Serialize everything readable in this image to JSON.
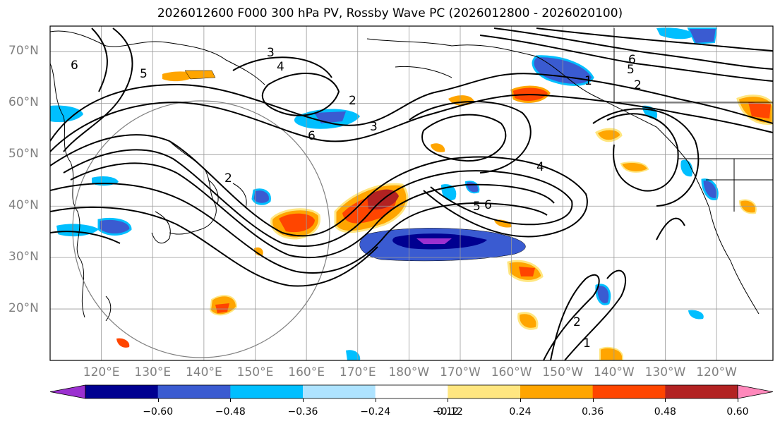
{
  "title": "2026012600 F000 300 hPa PV, Rossby Wave PC (2026012800 - 2026020100)",
  "map": {
    "lat_labels": [
      {
        "label": "70°N",
        "lat": 70
      },
      {
        "label": "60°N",
        "lat": 60
      },
      {
        "label": "50°N",
        "lat": 50
      },
      {
        "label": "40°N",
        "lat": 40
      },
      {
        "label": "30°N",
        "lat": 30
      },
      {
        "label": "20°N",
        "lat": 20
      }
    ],
    "lon_labels": [
      {
        "label": "120°E",
        "lon": 120
      },
      {
        "label": "130°E",
        "lon": 130
      },
      {
        "label": "140°E",
        "lon": 140
      },
      {
        "label": "150°E",
        "lon": 150
      },
      {
        "label": "160°E",
        "lon": 160
      },
      {
        "label": "170°E",
        "lon": 170
      },
      {
        "label": "180°W",
        "lon": 180
      },
      {
        "label": "170°W",
        "lon": 190
      },
      {
        "label": "160°W",
        "lon": 200
      },
      {
        "label": "150°W",
        "lon": 210
      },
      {
        "label": "140°W",
        "lon": 220
      },
      {
        "label": "130°W",
        "lon": 230
      },
      {
        "label": "120°W",
        "lon": 240
      }
    ],
    "extent": {
      "lon_min": 110,
      "lon_max": 251,
      "lat_min": 10,
      "lat_max": 75
    },
    "contour_labels": [
      "3",
      "4",
      "6",
      "5",
      "2",
      "3",
      "6",
      "2",
      "5",
      "6",
      "4",
      "1",
      "6",
      "5",
      "2",
      "1",
      "2"
    ]
  },
  "colorbar": {
    "ticks": [
      "−0.60",
      "−0.48",
      "−0.36",
      "−0.24",
      "−0.12",
      "0.12",
      "0.24",
      "0.36",
      "0.48",
      "0.60"
    ],
    "colors": [
      "#9b30d0",
      "#000090",
      "#3a5bd1",
      "#00bfff",
      "#aee3ff",
      "#ffffff",
      "#ffe680",
      "#ffa500",
      "#ff4500",
      "#b22222",
      "#ff88bb"
    ]
  }
}
